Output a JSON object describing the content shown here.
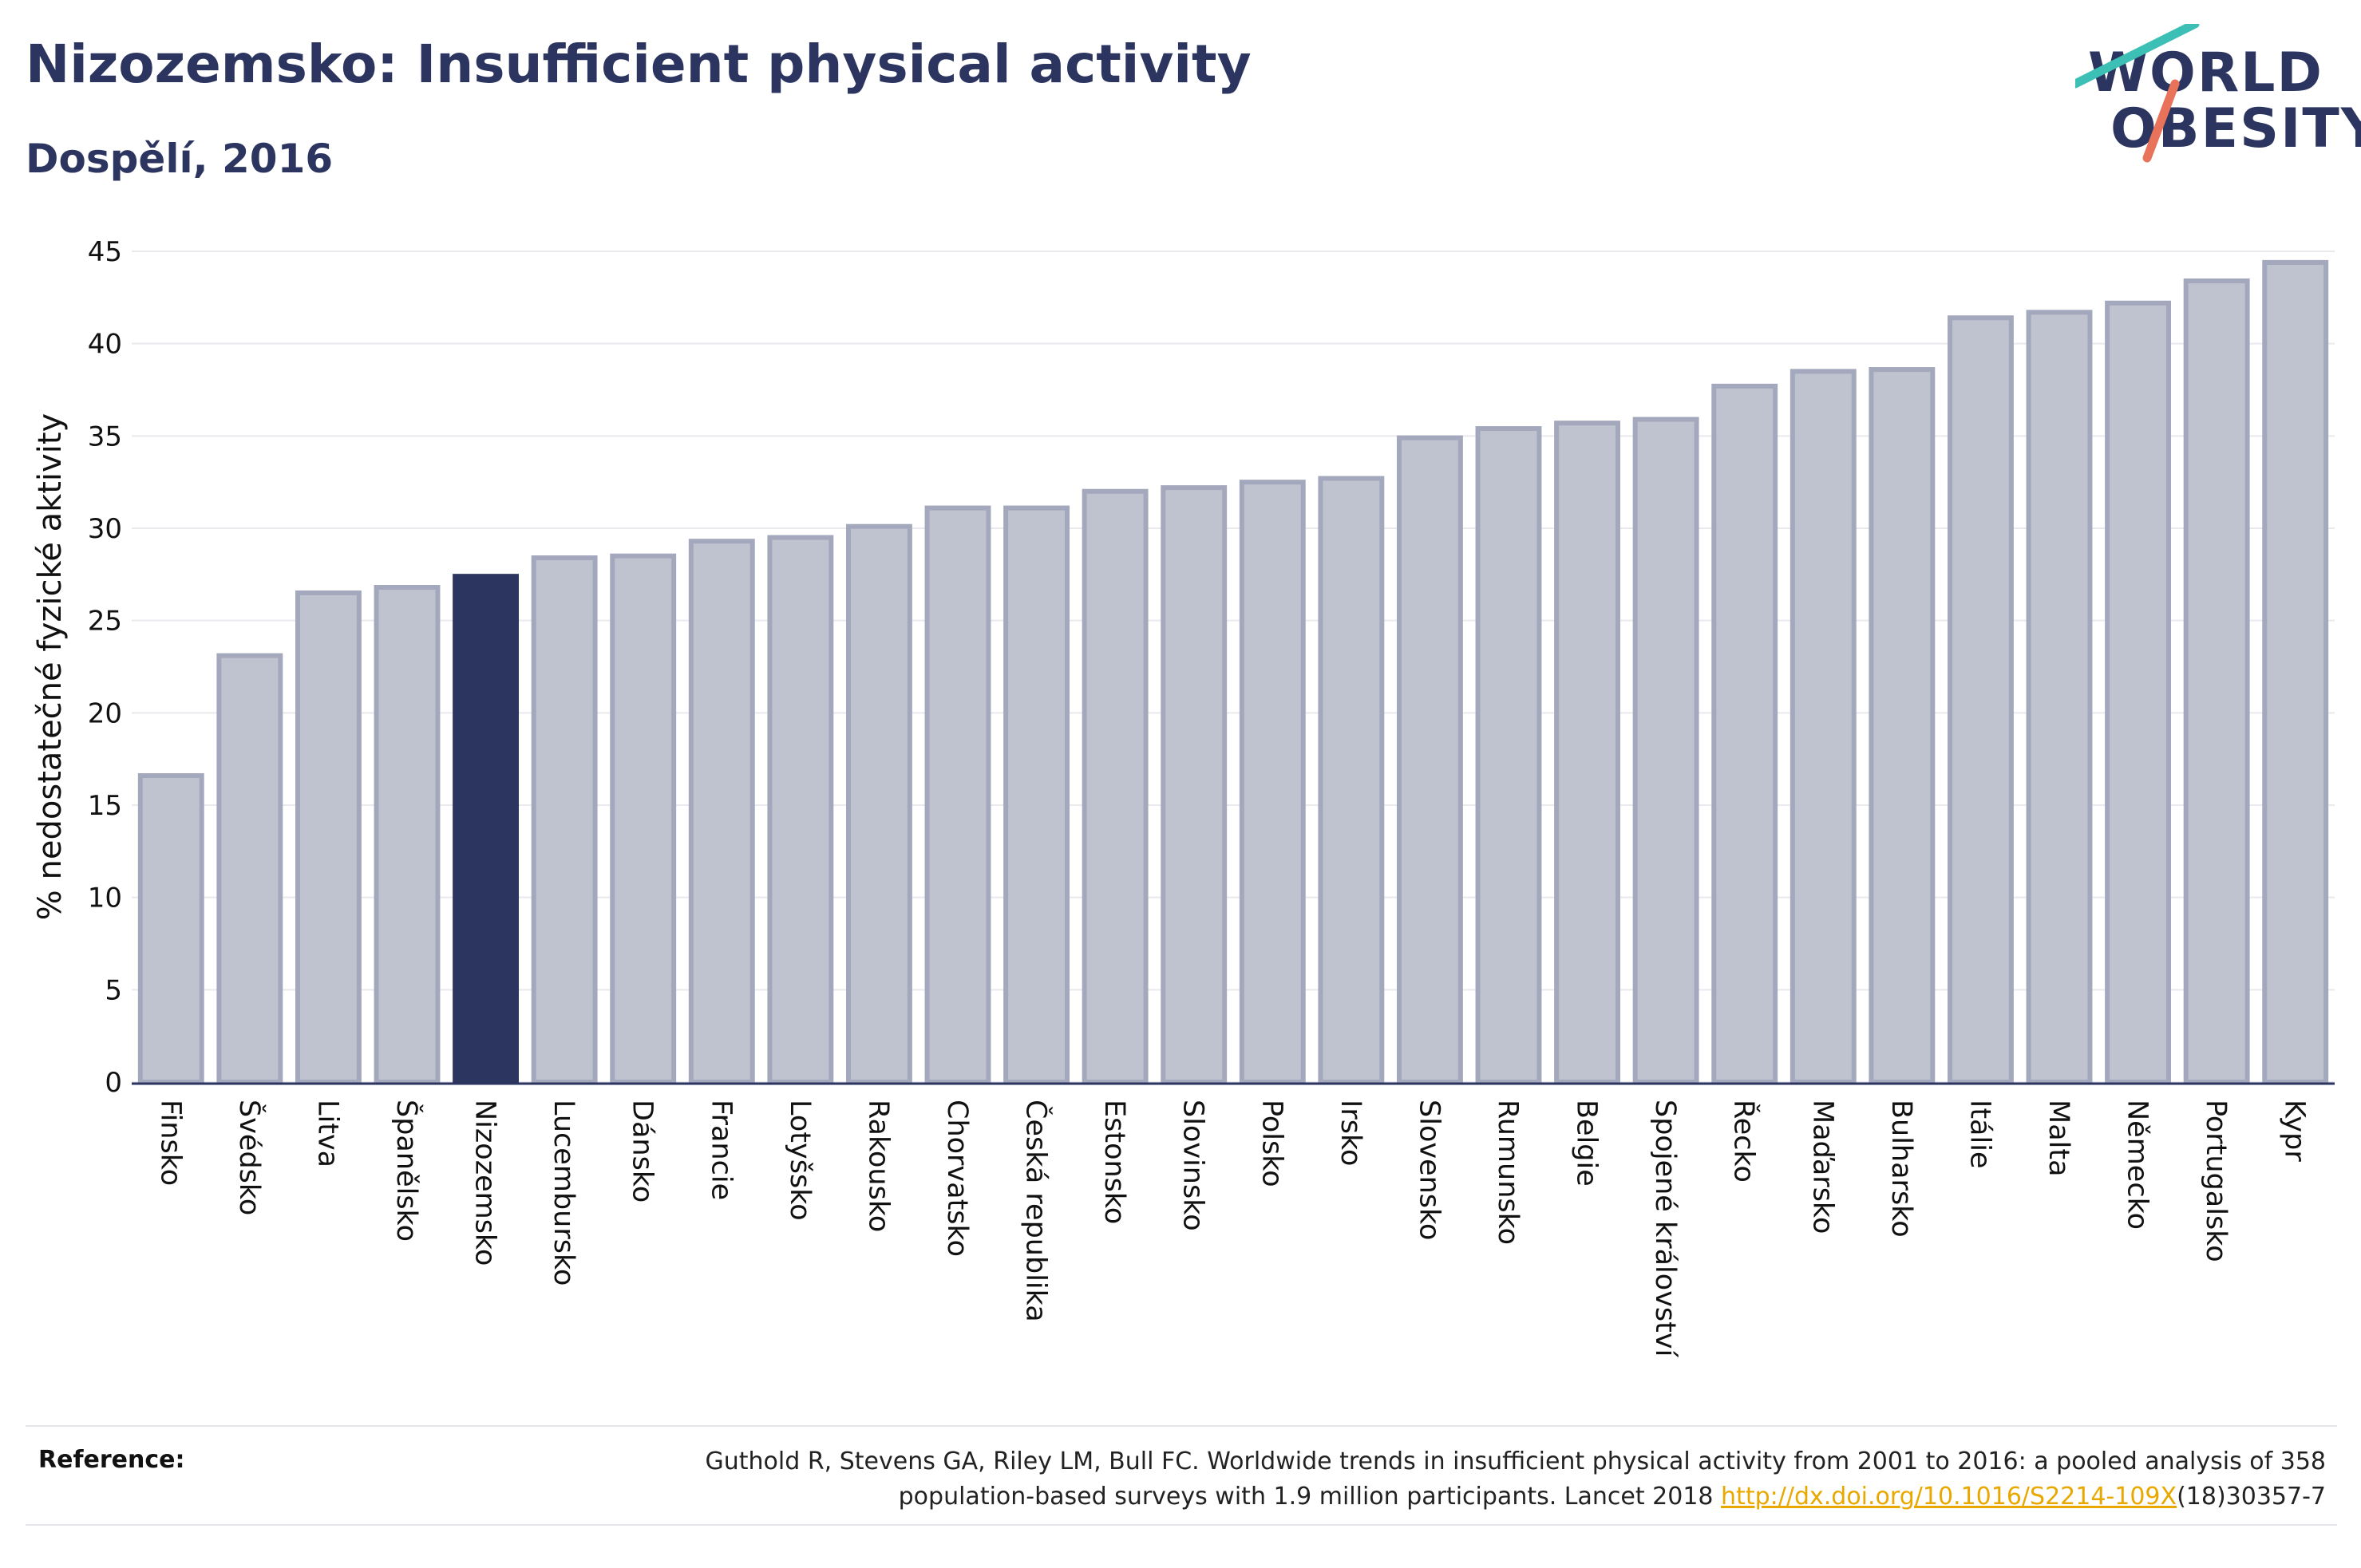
{
  "header": {
    "title": "Nizozemsko: Insufficient physical activity",
    "subtitle": "Dospělí, 2016"
  },
  "logo": {
    "line1": "WORLD",
    "line2": "OBESITY",
    "accent_colors": [
      "#3cbfb4",
      "#e8735a"
    ]
  },
  "colors": {
    "bar_fill": "#bfc2cf",
    "bar_stroke": "#a3a8bd",
    "highlight": "#2b3560",
    "grid": "#e9e9ee",
    "axis": "#2b3560",
    "link": "#e8a800"
  },
  "chart_data": {
    "type": "bar",
    "title": "Nizozemsko: Insufficient physical activity",
    "subtitle": "Dospělí, 2016",
    "ylabel": "% nedostatečné fyzické aktivity",
    "xlabel": "",
    "ylim": [
      0,
      45
    ],
    "yticks": [
      0,
      5,
      10,
      15,
      20,
      25,
      30,
      35,
      40,
      45
    ],
    "grid": true,
    "highlight_category": "Nizozemsko",
    "categories": [
      "Finsko",
      "Švédsko",
      "Litva",
      "Španělsko",
      "Nizozemsko",
      "Lucembursko",
      "Dánsko",
      "Francie",
      "Lotyšsko",
      "Rakousko",
      "Chorvatsko",
      "Česká republika",
      "Estonsko",
      "Slovinsko",
      "Polsko",
      "Irsko",
      "Slovensko",
      "Rumunsko",
      "Belgie",
      "Spojené království",
      "Řecko",
      "Maďarsko",
      "Bulharsko",
      "Itálie",
      "Malta",
      "Německo",
      "Portugalsko",
      "Kypr"
    ],
    "values": [
      16.6,
      23.1,
      26.5,
      26.8,
      27.4,
      28.4,
      28.5,
      29.3,
      29.5,
      30.1,
      31.1,
      31.1,
      32.0,
      32.2,
      32.5,
      32.7,
      34.9,
      35.4,
      35.7,
      35.9,
      37.7,
      38.5,
      38.6,
      41.4,
      41.7,
      42.2,
      43.4,
      44.4
    ]
  },
  "reference": {
    "label": "Reference:",
    "text_line1": "Guthold R, Stevens GA, Riley LM, Bull FC. Worldwide trends in insufficient physical activity from 2001 to 2016: a pooled analysis of 358",
    "text_line2_pre": "population-based surveys with 1.9 million participants. Lancet 2018 ",
    "link": "http://dx.doi.org/10.1016/S2214-109X",
    "text_line2_post": "(18)30357-7"
  }
}
